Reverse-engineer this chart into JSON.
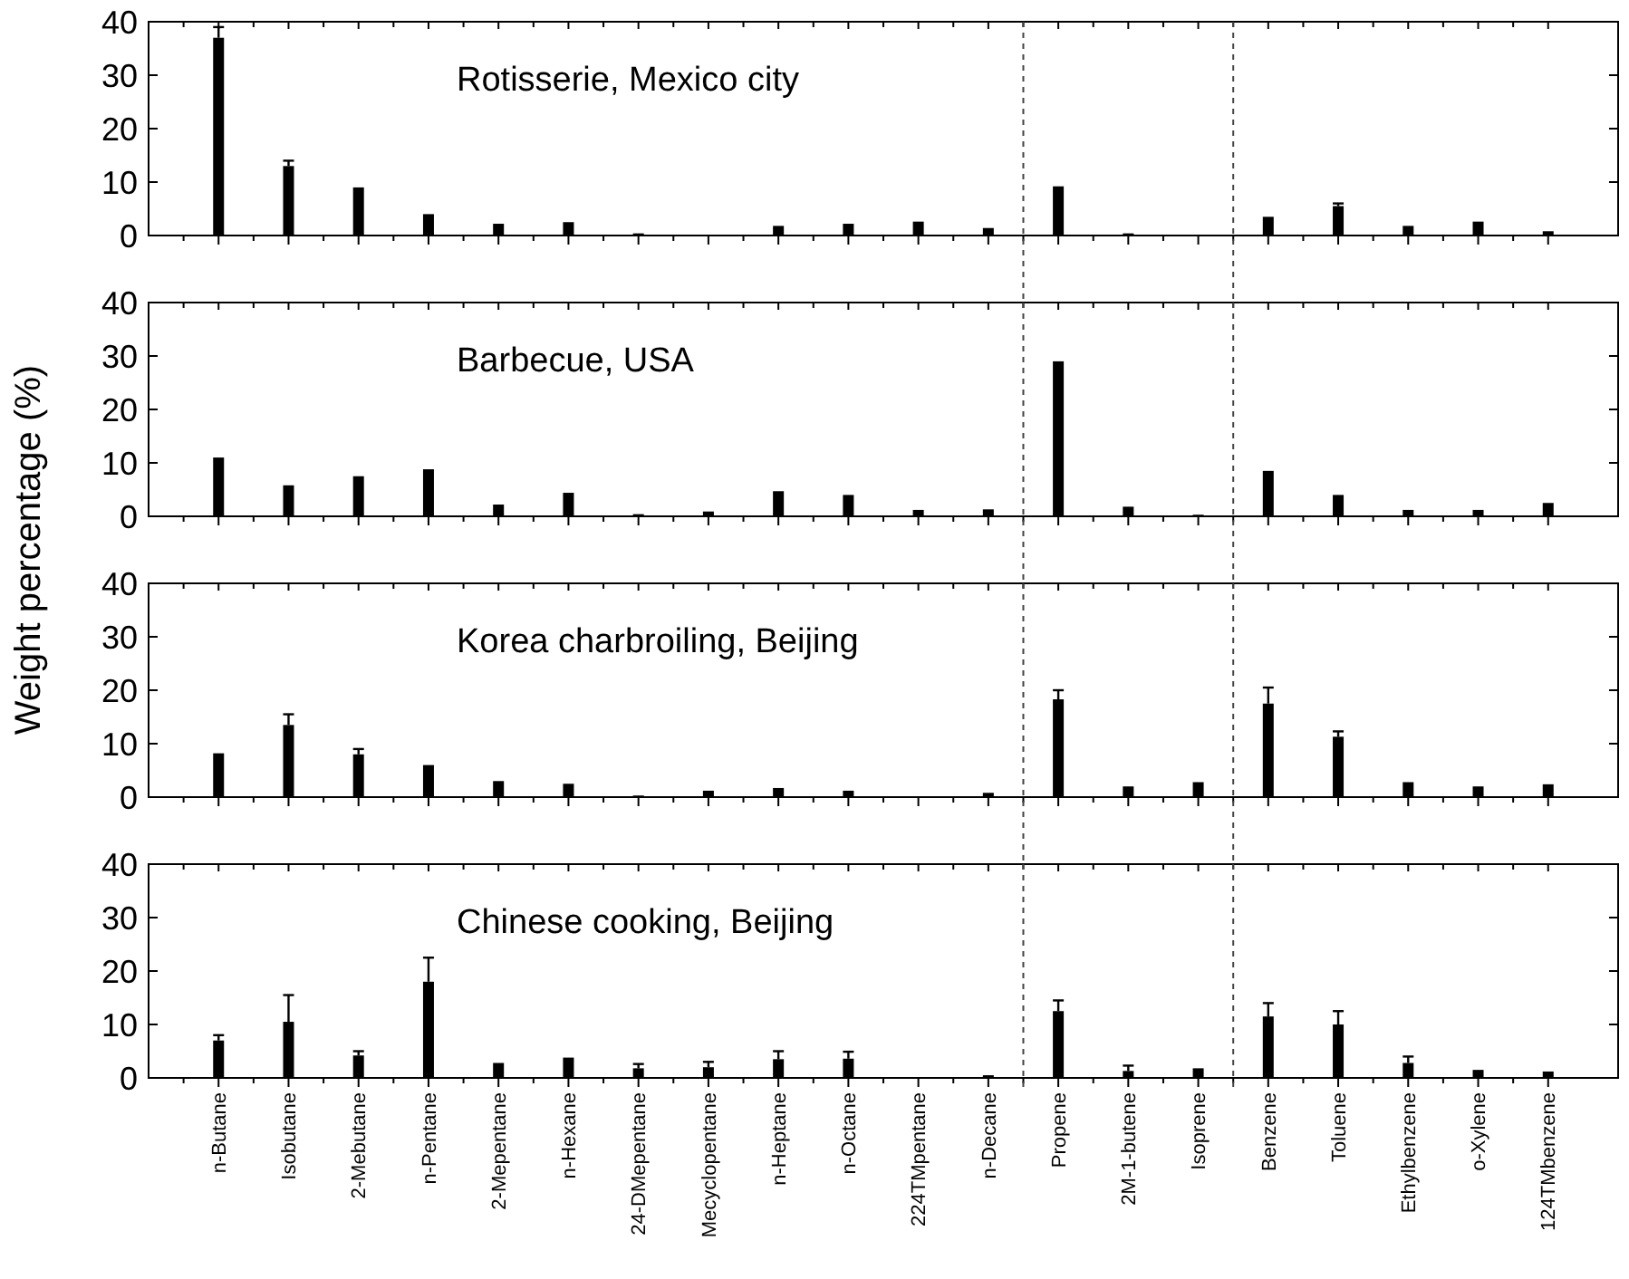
{
  "chart_data": [
    {
      "type": "bar",
      "annotations": [
        "Rotisserie, Mexico city"
      ],
      "categories": [
        "n-Butane",
        "Isobutane",
        "2-Mebutane",
        "n-Pentane",
        "2-Mepentane",
        "n-Hexane",
        "24-DMepentane",
        "Mecyclopentane",
        "n-Heptane",
        "n-Octane",
        "224TMpentane",
        "n-Decane",
        "Propene",
        "2M-1-butene",
        "Isoprene",
        "Benzene",
        "Toluene",
        "Ethylbenzene",
        "o-Xylene",
        "124TMbenzene"
      ],
      "values": [
        37,
        13,
        9,
        4,
        2.2,
        2.5,
        0.4,
        null,
        1.8,
        2.2,
        2.6,
        1.4,
        9.2,
        0.4,
        null,
        3.5,
        5.5,
        1.8,
        2.6,
        0.8
      ],
      "errors": [
        [
          37,
          39
        ],
        [
          13,
          14
        ],
        null,
        null,
        null,
        null,
        null,
        null,
        null,
        null,
        null,
        null,
        null,
        null,
        null,
        null,
        [
          5.5,
          6
        ],
        null,
        null,
        null
      ],
      "color": "#000000",
      "ylim": [
        0,
        40
      ],
      "yticks": [
        0,
        10,
        20,
        30,
        40
      ],
      "tick_labels": "y"
    },
    {
      "type": "bar",
      "annotations": [
        "Barbecue, USA"
      ],
      "ylabel": "Weight percentage (%)",
      "categories": [
        "n-Butane",
        "Isobutane",
        "2-Mebutane",
        "n-Pentane",
        "2-Mepentane",
        "n-Hexane",
        "24-DMepentane",
        "Mecyclopentane",
        "n-Heptane",
        "n-Octane",
        "224TMpentane",
        "n-Decane",
        "Propene",
        "2M-1-butene",
        "Isoprene",
        "Benzene",
        "Toluene",
        "Ethylbenzene",
        "o-Xylene",
        "124TMbenzene"
      ],
      "values": [
        11,
        5.8,
        7.5,
        8.8,
        2.2,
        4.4,
        0.4,
        0.9,
        4.7,
        4,
        1.2,
        1.3,
        29,
        1.8,
        0.3,
        8.5,
        4,
        1.2,
        1.2,
        2.5
      ],
      "color": "#000000",
      "ylim": [
        0,
        40
      ],
      "yticks": [
        0,
        10,
        20,
        30,
        40
      ],
      "tick_labels": "y"
    },
    {
      "type": "bar",
      "annotations": [
        "Korea charbroiling, Beijing"
      ],
      "categories": [
        "n-Butane",
        "Isobutane",
        "2-Mebutane",
        "n-Pentane",
        "2-Mepentane",
        "n-Hexane",
        "24-DMepentane",
        "Mecyclopentane",
        "n-Heptane",
        "n-Octane",
        "224TMpentane",
        "n-Decane",
        "Propene",
        "2M-1-butene",
        "Isoprene",
        "Benzene",
        "Toluene",
        "Ethylbenzene",
        "o-Xylene",
        "124TMbenzene"
      ],
      "values": [
        8.2,
        13.5,
        8,
        6,
        3,
        2.5,
        0.3,
        1.2,
        1.7,
        1.2,
        null,
        0.8,
        18.3,
        2,
        2.8,
        17.5,
        11.3,
        2.8,
        2,
        2.4
      ],
      "errors": [
        null,
        [
          13.5,
          15.5
        ],
        [
          8,
          9
        ],
        null,
        null,
        null,
        null,
        null,
        null,
        null,
        null,
        null,
        [
          18.3,
          20
        ],
        null,
        null,
        [
          17.5,
          20.5
        ],
        [
          11.3,
          12.3
        ],
        null,
        null,
        null
      ],
      "color": "#000000",
      "ylim": [
        0,
        40
      ],
      "yticks": [
        0,
        10,
        20,
        30,
        40
      ],
      "tick_labels": "y"
    },
    {
      "type": "bar",
      "annotations": [
        "Chinese cooking, Beijing"
      ],
      "categories": [
        "n-Butane",
        "Isobutane",
        "2-Mebutane",
        "n-Pentane",
        "2-Mepentane",
        "n-Hexane",
        "24-DMepentane",
        "Mecyclopentane",
        "n-Heptane",
        "n-Octane",
        "224TMpentane",
        "n-Decane",
        "Propene",
        "2M-1-butene",
        "Isoprene",
        "Benzene",
        "Toluene",
        "Ethylbenzene",
        "o-Xylene",
        "124TMbenzene"
      ],
      "values": [
        7,
        10.5,
        4.2,
        18,
        2.8,
        3.8,
        1.8,
        2,
        3.5,
        3.6,
        null,
        0.5,
        12.5,
        1.3,
        1.8,
        11.5,
        10,
        2.8,
        1.5,
        1.2
      ],
      "errors": [
        [
          7,
          8
        ],
        [
          10.5,
          15.5
        ],
        [
          4.2,
          5
        ],
        [
          18,
          22.5
        ],
        null,
        null,
        [
          1.8,
          2.6
        ],
        [
          2,
          3
        ],
        [
          3.5,
          5
        ],
        [
          3.6,
          4.9
        ],
        null,
        null,
        [
          12.5,
          14.5
        ],
        [
          1.3,
          2.3
        ],
        null,
        [
          11.5,
          14
        ],
        [
          10,
          12.5
        ],
        [
          2.8,
          4
        ],
        null,
        null
      ],
      "color": "#000000",
      "ylim": [
        0,
        40
      ],
      "yticks": [
        0,
        10,
        20,
        30,
        40
      ]
    }
  ]
}
